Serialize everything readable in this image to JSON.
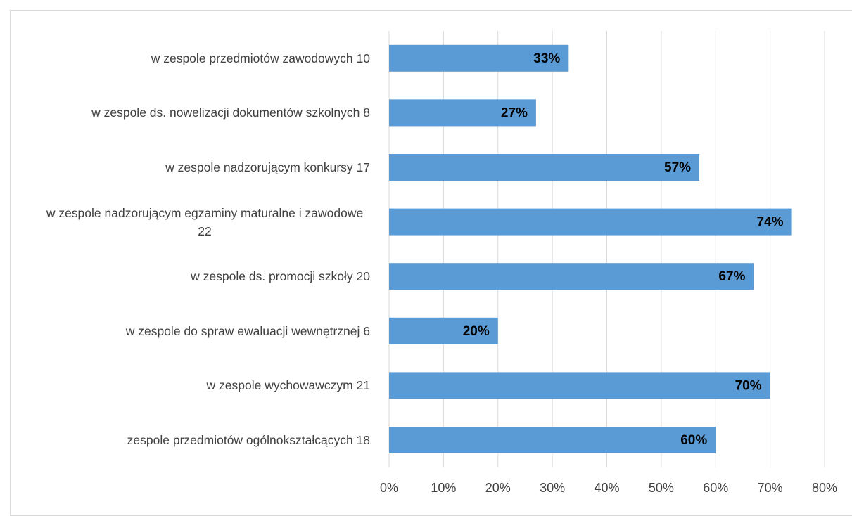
{
  "chart_data": {
    "type": "bar",
    "orientation": "horizontal",
    "categories": [
      "w zespole przedmiotów zawodowych 10",
      "w zespole ds. nowelizacji dokumentów szkolnych 8",
      "w zespole nadzorującym konkursy 17",
      "w zespole nadzorującym egzaminy maturalne i zawodowe 22",
      "w zespole ds. promocji szkoły 20",
      "w zespole do spraw ewaluacji wewnętrznej 6",
      "w zespole wychowawczym 21",
      "zespole przedmiotów ogólnokształcących 18"
    ],
    "values": [
      33,
      27,
      57,
      74,
      67,
      20,
      70,
      60
    ],
    "value_labels": [
      "33%",
      "27%",
      "57%",
      "74%",
      "67%",
      "20%",
      "70%",
      "60%"
    ],
    "color": "#5b9bd5",
    "xlim": [
      0,
      80
    ],
    "xticks": [
      {
        "value": 0,
        "label": "0%"
      },
      {
        "value": 10,
        "label": "10%"
      },
      {
        "value": 20,
        "label": "20%"
      },
      {
        "value": 30,
        "label": "30%"
      },
      {
        "value": 40,
        "label": "40%"
      },
      {
        "value": 50,
        "label": "50%"
      },
      {
        "value": 60,
        "label": "60%"
      },
      {
        "value": 70,
        "label": "70%"
      },
      {
        "value": 80,
        "label": "80%"
      }
    ],
    "grid": true
  }
}
